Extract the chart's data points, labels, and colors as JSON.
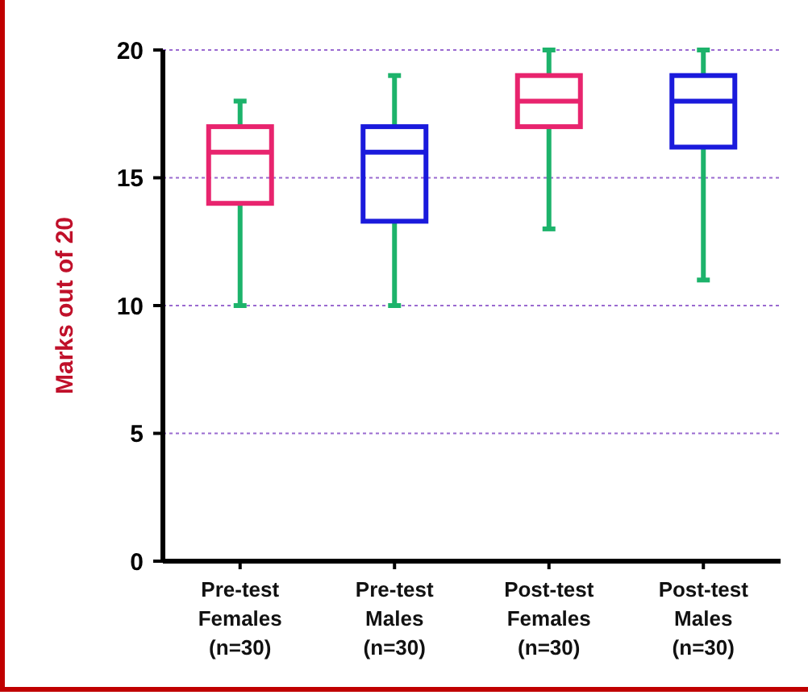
{
  "chart_data": {
    "type": "box",
    "ylabel": "Marks out of 20",
    "categories": [
      "Pre-test\nFemales\n(n=30)",
      "Pre-test\nMales\n(n=30)",
      "Post-test\nFemales\n(n=30)",
      "Post-test\nMales\n(n=30)"
    ],
    "boxes": [
      {
        "low": 10,
        "q1": 14,
        "median": 16,
        "q3": 17,
        "high": 18
      },
      {
        "low": 10,
        "q1": 13.3,
        "median": 16,
        "q3": 17,
        "high": 19
      },
      {
        "low": 13,
        "q1": 17,
        "median": 18,
        "q3": 19,
        "high": 20
      },
      {
        "low": 11,
        "q1": 16.2,
        "median": 18,
        "q3": 19,
        "high": 20
      }
    ],
    "colors": [
      "#e8246e",
      "#1a1adc",
      "#e8246e",
      "#1a1adc"
    ],
    "ylim": [
      0,
      20
    ],
    "yticks": [
      0,
      5,
      10,
      15,
      20
    ],
    "grid": "y"
  }
}
